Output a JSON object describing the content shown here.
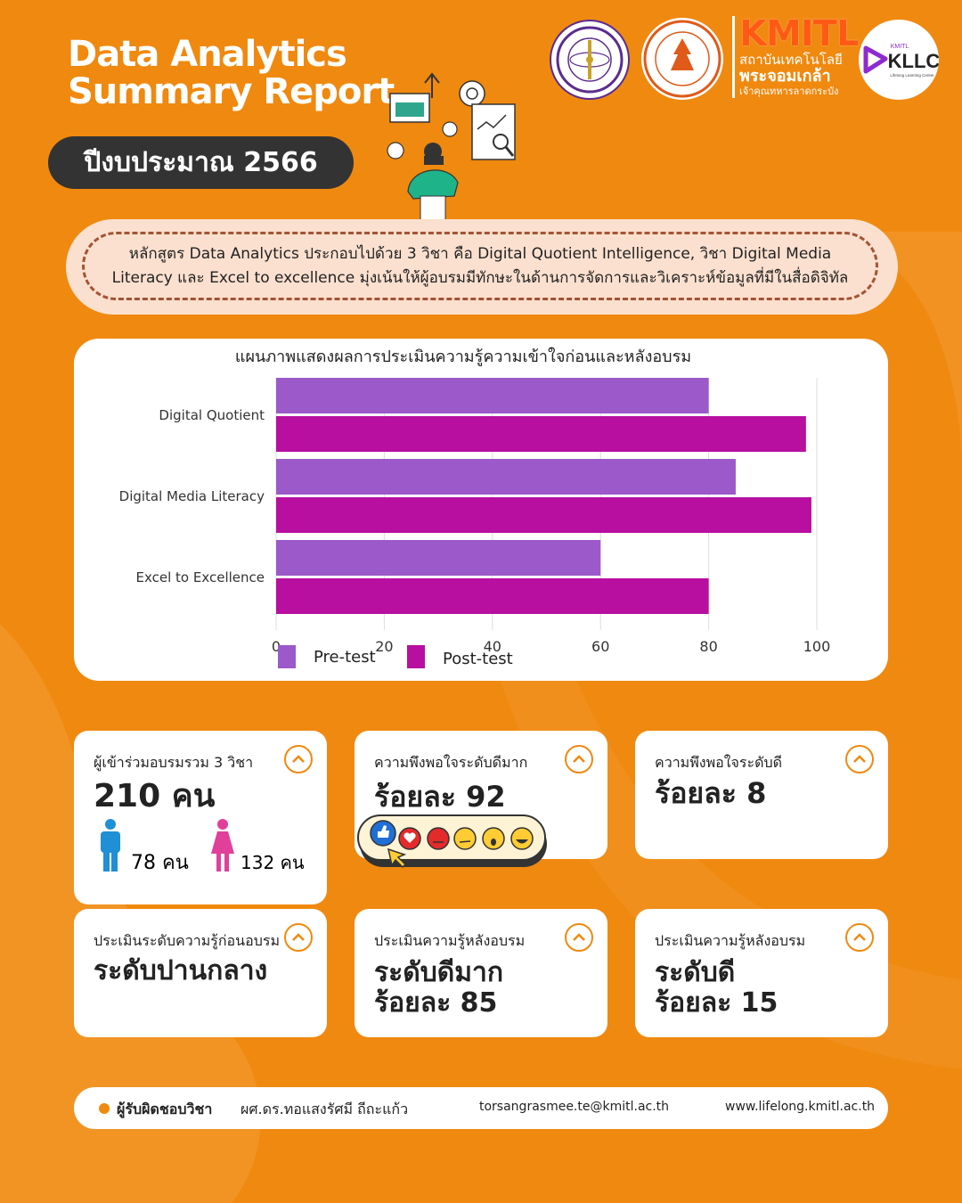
{
  "header": {
    "title_line1": "Data Analytics",
    "title_line2": "Summary Report",
    "year_label": "ปีงบประมาณ 2566"
  },
  "kmitl_logo": {
    "name": "KMITL",
    "line1": "สถาบันเทคโนโลยี",
    "line2": "พระจอมเกล้า",
    "line3": "เจ้าคุณทหารลาดกระบัง"
  },
  "kllc_logo": {
    "name": "KLLC",
    "small": "KMITL",
    "tagline": "Lifelong Learning Center"
  },
  "description": "หลักสูตร Data Analytics ประกอบไปด้วย 3 วิชา คือ Digital Quotient Intelligence, วิชา Digital Media Literacy และ Excel to excellence มุ่งเน้นให้ผู้อบรมมีทักษะในด้านการจัดการและวิเคราะห์ข้อมูลที่มีในสื่อดิจิทัล",
  "chart_data": {
    "type": "bar",
    "orientation": "horizontal",
    "title": "แผนภาพแสดงผลการประเมินความรู้ความเข้าใจก่อนและหลังอบรม",
    "categories": [
      "Digital Quotient",
      "Digital Media Literacy",
      "Excel to Excellence"
    ],
    "series": [
      {
        "name": "Pre-test",
        "values": [
          80,
          85,
          60
        ],
        "color": "#9b59c9"
      },
      {
        "name": "Post-test",
        "values": [
          98,
          99,
          80
        ],
        "color": "#b80fa0"
      }
    ],
    "xlim": [
      0,
      100
    ],
    "ticks": [
      "0",
      "20",
      "40",
      "60",
      "80",
      "100"
    ],
    "grid": true,
    "legend": "bottom"
  },
  "cards": {
    "participants": {
      "label": "ผู้เข้าร่วมอบรมรวม 3 วิชา",
      "value": "210 คน",
      "male": "78 คน",
      "female": "132 คน"
    },
    "very_satisfied": {
      "label": "ความพึงพอใจระดับดีมาก",
      "value": "ร้อยละ 92"
    },
    "satisfied": {
      "label": "ความพึงพอใจระดับดี",
      "value": "ร้อยละ 8"
    },
    "pre_level": {
      "label": "ประเมินระดับความรู้ก่อนอบรม",
      "value": "ระดับปานกลาง"
    },
    "post_very_good": {
      "label": "ประเมินความรู้หลังอบรม",
      "value1": "ระดับดีมาก",
      "value2": "ร้อยละ 85"
    },
    "post_good": {
      "label": "ประเมินความรู้หลังอบรม",
      "value1": "ระดับดี",
      "value2": "ร้อยละ 15"
    }
  },
  "footer": {
    "label": "ผู้รับผิดชอบวิชา",
    "name": "ผศ.ดร.ทอแสงรัศมี ถีถะแก้ว",
    "email": "torsangrasmee.te@kmitl.ac.th",
    "website": "www.lifelong.kmitl.ac.th"
  },
  "colors": {
    "background": "#f0890f",
    "pre": "#9b59c9",
    "post": "#b80fa0",
    "dark": "#333333"
  }
}
